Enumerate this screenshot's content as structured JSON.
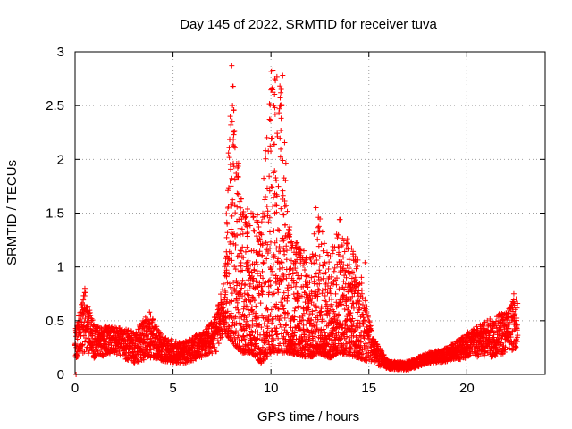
{
  "chart_data": {
    "type": "scatter",
    "title": "Day 145 of 2022, SRMTID for receiver tuva",
    "xlabel": "GPS time / hours",
    "ylabel": "SRMTID / TECUs",
    "xlim": [
      0,
      24
    ],
    "ylim": [
      0,
      3
    ],
    "xticks": [
      "0",
      "5",
      "10",
      "15",
      "20"
    ],
    "yticks": [
      "0",
      "0.5",
      "1",
      "1.5",
      "2",
      "2.5",
      "3"
    ],
    "grid": true,
    "marker": "+",
    "colors": {
      "points": "#ff0000",
      "grid": "#a0a0a0",
      "axes": "#000000"
    },
    "envelope": {
      "description": "approximate point-cloud profile by hour: [hour, low, high]",
      "points": [
        [
          0.0,
          0.15,
          0.4
        ],
        [
          0.5,
          0.2,
          0.8
        ],
        [
          1.0,
          0.15,
          0.45
        ],
        [
          2.0,
          0.2,
          0.45
        ],
        [
          3.0,
          0.1,
          0.4
        ],
        [
          3.8,
          0.15,
          0.58
        ],
        [
          4.5,
          0.12,
          0.35
        ],
        [
          5.5,
          0.1,
          0.3
        ],
        [
          6.5,
          0.15,
          0.4
        ],
        [
          7.2,
          0.2,
          0.55
        ],
        [
          7.6,
          0.4,
          0.9
        ],
        [
          8.0,
          0.3,
          2.87
        ],
        [
          8.5,
          0.2,
          1.6
        ],
        [
          9.0,
          0.2,
          1.5
        ],
        [
          9.5,
          0.1,
          1.5
        ],
        [
          10.0,
          0.2,
          2.83
        ],
        [
          10.5,
          0.2,
          2.78
        ],
        [
          11.0,
          0.2,
          1.3
        ],
        [
          12.0,
          0.15,
          1.1
        ],
        [
          12.4,
          0.2,
          1.55
        ],
        [
          13.0,
          0.15,
          1.1
        ],
        [
          13.5,
          0.2,
          1.45
        ],
        [
          14.5,
          0.15,
          1.05
        ],
        [
          15.2,
          0.1,
          0.35
        ],
        [
          16.0,
          0.05,
          0.12
        ],
        [
          17.0,
          0.04,
          0.12
        ],
        [
          18.0,
          0.1,
          0.2
        ],
        [
          19.0,
          0.12,
          0.25
        ],
        [
          20.0,
          0.15,
          0.4
        ],
        [
          21.0,
          0.15,
          0.5
        ],
        [
          22.0,
          0.2,
          0.6
        ],
        [
          22.6,
          0.25,
          0.75
        ]
      ]
    },
    "notable_points": [
      [
        8.0,
        2.87
      ],
      [
        8.05,
        2.68
      ],
      [
        8.1,
        2.23
      ],
      [
        10.1,
        2.83
      ],
      [
        10.2,
        2.75
      ],
      [
        10.6,
        2.78
      ],
      [
        10.5,
        2.62
      ],
      [
        10.15,
        2.5
      ],
      [
        12.3,
        1.55
      ],
      [
        13.5,
        1.44
      ],
      [
        14.8,
        1.04
      ],
      [
        0.5,
        0.8
      ],
      [
        3.8,
        0.58
      ],
      [
        22.4,
        0.75
      ],
      [
        0.05,
        0.0
      ]
    ]
  }
}
